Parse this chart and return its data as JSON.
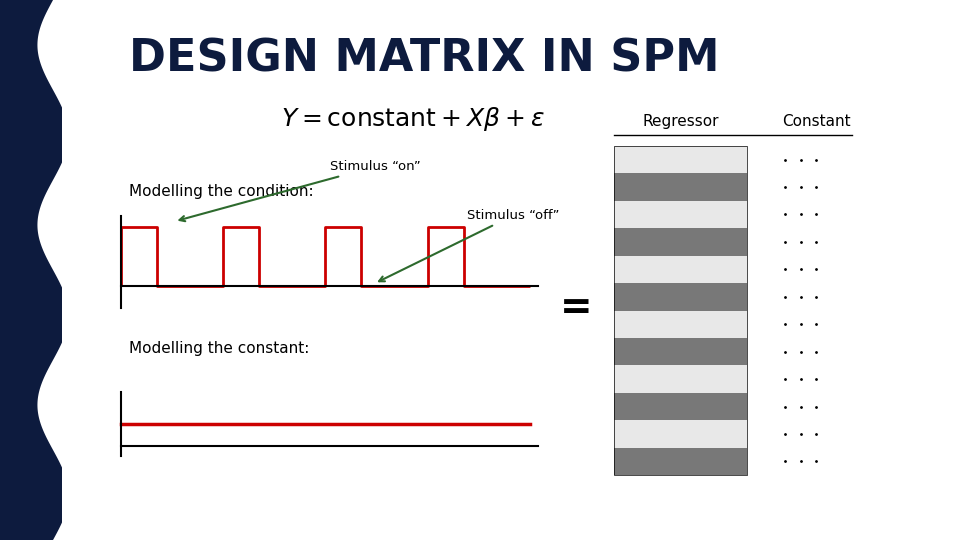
{
  "title": "DESIGN MATRIX IN SPM",
  "title_color": "#0d1b3e",
  "bg_color": "#ffffff",
  "left_bar_color": "#0d1b3e",
  "right_bar_color": "#5bbcd6",
  "formula": "Y = constant + X\\beta + \\varepsilon",
  "label_condition": "Modelling the condition:",
  "label_constant": "Modelling the constant:",
  "label_stimulus_on": "Stimulus “on”",
  "label_stimulus_off": "Stimulus “off”",
  "label_regressor": "Regressor",
  "label_constant_col": "Constant",
  "equals_sign": "=",
  "regressor_dark": "#787878",
  "regressor_light": "#e8e8e8",
  "signal_color": "#cc0000",
  "arrow_color": "#2d6a2d",
  "n_stripes": 12
}
